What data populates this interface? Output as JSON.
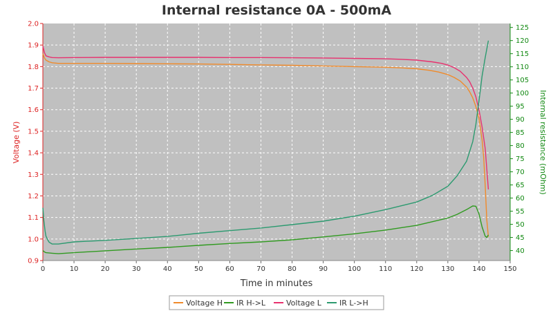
{
  "chart_data": {
    "type": "line",
    "title": "Internal resistance  0A - 500mA",
    "xlabel": "Time in minutes",
    "ylabel_left": "Voltage (V)",
    "ylabel_right": "Internal resistance (mOhm)",
    "xlim": [
      0,
      150
    ],
    "ylim_left": [
      0.9,
      2.0
    ],
    "ylim_right": [
      36.2,
      126.5
    ],
    "x_ticks": [
      "0",
      "10",
      "20",
      "30",
      "40",
      "50",
      "60",
      "70",
      "80",
      "90",
      "100",
      "110",
      "120",
      "130",
      "140",
      "150"
    ],
    "y_left_ticks": [
      "0.9",
      "1.0",
      "1.1",
      "1.2",
      "1.3",
      "1.4",
      "1.5",
      "1.6",
      "1.7",
      "1.8",
      "1.9",
      "2.0"
    ],
    "y_right_ticks": [
      "40",
      "45",
      "50",
      "55",
      "60",
      "65",
      "70",
      "75",
      "80",
      "85",
      "90",
      "95",
      "100",
      "105",
      "110",
      "115",
      "120",
      "125"
    ],
    "grid": true,
    "legend_placement": "bottom",
    "colors": {
      "voltage_h": "#f08a2a",
      "ir_h_to_l": "#2f9a1f",
      "voltage_l": "#e8306e",
      "ir_l_to_h": "#2b9a6f",
      "left_axis": "#dd2222",
      "right_axis": "#108810",
      "plot_bg": "#c0c0c0"
    },
    "series": [
      {
        "name": "Voltage H",
        "axis": "left",
        "x": [
          0,
          0.5,
          1,
          2,
          3,
          5,
          10,
          20,
          30,
          40,
          50,
          60,
          70,
          80,
          90,
          100,
          110,
          115,
          120,
          124,
          127,
          130,
          132,
          134,
          136,
          137,
          138,
          139,
          140,
          141,
          141.5,
          142,
          142.5,
          143
        ],
        "values": [
          1.86,
          1.84,
          1.83,
          1.822,
          1.818,
          1.815,
          1.815,
          1.815,
          1.814,
          1.813,
          1.812,
          1.81,
          1.808,
          1.806,
          1.803,
          1.8,
          1.797,
          1.794,
          1.79,
          1.783,
          1.775,
          1.763,
          1.75,
          1.733,
          1.705,
          1.683,
          1.655,
          1.615,
          1.56,
          1.46,
          1.38,
          1.25,
          1.09,
          1.01
        ]
      },
      {
        "name": "IR H->L",
        "axis": "right",
        "x": [
          0,
          0.5,
          1,
          3,
          5,
          10,
          20,
          30,
          40,
          50,
          60,
          70,
          80,
          90,
          100,
          110,
          120,
          125,
          130,
          133,
          136,
          138,
          139,
          140,
          141,
          142,
          142.5,
          143
        ],
        "values": [
          40,
          39.5,
          39.2,
          39,
          38.8,
          39.2,
          39.9,
          40.6,
          41.2,
          42,
          42.7,
          43.3,
          44.1,
          45.2,
          46.4,
          47.8,
          49.6,
          51,
          52.4,
          53.8,
          55.6,
          57,
          56.9,
          54,
          49,
          45.5,
          45,
          46
        ]
      },
      {
        "name": "Voltage L",
        "axis": "left",
        "x": [
          0,
          0.5,
          1,
          2,
          3,
          5,
          10,
          20,
          30,
          40,
          50,
          60,
          70,
          80,
          90,
          100,
          110,
          115,
          120,
          125,
          128,
          130,
          132,
          134,
          136,
          137,
          138,
          139,
          140,
          141,
          142,
          143
        ],
        "values": [
          1.895,
          1.865,
          1.85,
          1.845,
          1.842,
          1.841,
          1.842,
          1.843,
          1.843,
          1.843,
          1.843,
          1.842,
          1.842,
          1.841,
          1.84,
          1.838,
          1.836,
          1.834,
          1.83,
          1.822,
          1.815,
          1.807,
          1.795,
          1.778,
          1.75,
          1.73,
          1.7,
          1.66,
          1.6,
          1.52,
          1.42,
          1.23
        ]
      },
      {
        "name": "IR L->H",
        "axis": "right",
        "x": [
          0,
          0.3,
          0.7,
          1,
          1.5,
          2,
          3,
          5,
          10,
          20,
          30,
          40,
          50,
          60,
          70,
          80,
          90,
          100,
          110,
          120,
          125,
          130,
          133,
          136,
          138,
          139,
          140,
          141,
          142,
          143
        ],
        "values": [
          56.3,
          51.5,
          47.5,
          45.5,
          44.2,
          43.2,
          42.5,
          42.5,
          43.3,
          43.9,
          44.6,
          45.4,
          46.6,
          47.6,
          48.6,
          49.9,
          51.2,
          53.1,
          55.6,
          58.5,
          61,
          64.5,
          68.5,
          74,
          81.5,
          88,
          97,
          106.5,
          113.5,
          120
        ]
      }
    ]
  }
}
